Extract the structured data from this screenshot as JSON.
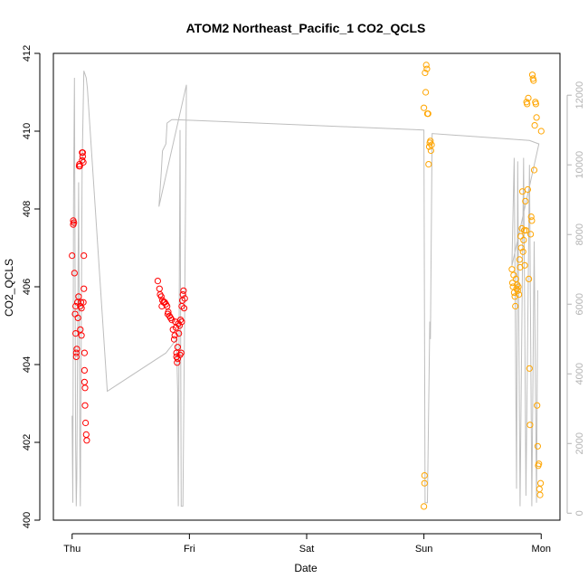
{
  "chart_data": {
    "type": "scatter",
    "title": "ATOM2 Northeast_Pacific_1 CO2_QCLS",
    "xlabel": "Date",
    "ylabel": "CO2_QCLS",
    "x_categories": [
      "Thu",
      "Fri",
      "Sat",
      "Sun",
      "Mon"
    ],
    "xlim": [
      -0.16,
      4.16
    ],
    "ylim": [
      400,
      412
    ],
    "y_ticks": [
      400,
      402,
      404,
      406,
      408,
      410,
      412
    ],
    "y2lim": [
      -200,
      13200
    ],
    "y2_ticks": [
      0,
      2000,
      4000,
      6000,
      8000,
      10000,
      12000
    ],
    "grid": false,
    "legend": "none",
    "colors": {
      "series1": "#ff0000",
      "series2": "#ffa500",
      "altitude": "#bebebe",
      "axis": "#000000",
      "axis2": "#b3b3b3"
    },
    "series": [
      {
        "color": "#ff0000",
        "points": [
          [
            0.0,
            406.8
          ],
          [
            0.01,
            407.6
          ],
          [
            0.01,
            407.7
          ],
          [
            0.015,
            407.65
          ],
          [
            0.02,
            406.35
          ],
          [
            0.025,
            405.3
          ],
          [
            0.03,
            405.5
          ],
          [
            0.03,
            404.8
          ],
          [
            0.035,
            404.2
          ],
          [
            0.035,
            404.3
          ],
          [
            0.04,
            404.4
          ],
          [
            0.045,
            405.6
          ],
          [
            0.05,
            405.2
          ],
          [
            0.055,
            405.75
          ],
          [
            0.06,
            409.1
          ],
          [
            0.062,
            409.15
          ],
          [
            0.065,
            409.1
          ],
          [
            0.07,
            404.9
          ],
          [
            0.07,
            405.5
          ],
          [
            0.075,
            405.6
          ],
          [
            0.08,
            405.45
          ],
          [
            0.08,
            404.75
          ],
          [
            0.085,
            409.25
          ],
          [
            0.085,
            409.45
          ],
          [
            0.09,
            409.45
          ],
          [
            0.09,
            409.35
          ],
          [
            0.095,
            409.2
          ],
          [
            0.095,
            405.6
          ],
          [
            0.1,
            405.95
          ],
          [
            0.1,
            406.8
          ],
          [
            0.105,
            404.3
          ],
          [
            0.105,
            403.85
          ],
          [
            0.105,
            403.55
          ],
          [
            0.11,
            403.4
          ],
          [
            0.11,
            402.95
          ],
          [
            0.115,
            402.5
          ],
          [
            0.12,
            402.2
          ],
          [
            0.125,
            402.05
          ],
          [
            0.73,
            406.15
          ],
          [
            0.745,
            405.95
          ],
          [
            0.75,
            405.8
          ],
          [
            0.76,
            405.75
          ],
          [
            0.765,
            405.5
          ],
          [
            0.77,
            405.65
          ],
          [
            0.78,
            405.6
          ],
          [
            0.79,
            405.6
          ],
          [
            0.8,
            405.55
          ],
          [
            0.81,
            405.5
          ],
          [
            0.815,
            405.3
          ],
          [
            0.82,
            405.35
          ],
          [
            0.83,
            405.25
          ],
          [
            0.84,
            405.2
          ],
          [
            0.85,
            405.15
          ],
          [
            0.86,
            404.9
          ],
          [
            0.87,
            404.65
          ],
          [
            0.875,
            404.75
          ],
          [
            0.88,
            405.1
          ],
          [
            0.885,
            404.95
          ],
          [
            0.89,
            404.2
          ],
          [
            0.89,
            404.3
          ],
          [
            0.895,
            404.05
          ],
          [
            0.9,
            404.15
          ],
          [
            0.9,
            404.45
          ],
          [
            0.905,
            405.05
          ],
          [
            0.91,
            404.8
          ],
          [
            0.915,
            405.0
          ],
          [
            0.92,
            404.25
          ],
          [
            0.925,
            405.15
          ],
          [
            0.93,
            404.3
          ],
          [
            0.935,
            405.1
          ],
          [
            0.935,
            405.5
          ],
          [
            0.94,
            405.65
          ],
          [
            0.945,
            405.8
          ],
          [
            0.95,
            405.9
          ],
          [
            0.955,
            405.45
          ],
          [
            0.96,
            405.7
          ]
        ]
      },
      {
        "color": "#ffa500",
        "points": [
          [
            3.0,
            410.6
          ],
          [
            3.005,
            401.15
          ],
          [
            3.005,
            400.95
          ],
          [
            3.0,
            400.35
          ],
          [
            3.01,
            411.5
          ],
          [
            3.015,
            411.0
          ],
          [
            3.02,
            411.7
          ],
          [
            3.025,
            411.6
          ],
          [
            3.03,
            410.45
          ],
          [
            3.035,
            410.45
          ],
          [
            3.04,
            409.15
          ],
          [
            3.045,
            409.6
          ],
          [
            3.05,
            409.7
          ],
          [
            3.055,
            409.75
          ],
          [
            3.06,
            409.5
          ],
          [
            3.065,
            409.65
          ],
          [
            3.75,
            406.45
          ],
          [
            3.755,
            406.1
          ],
          [
            3.76,
            406.0
          ],
          [
            3.765,
            406.3
          ],
          [
            3.77,
            405.85
          ],
          [
            3.775,
            405.75
          ],
          [
            3.78,
            405.5
          ],
          [
            3.785,
            406.2
          ],
          [
            3.79,
            405.95
          ],
          [
            3.795,
            406.05
          ],
          [
            3.8,
            405.9
          ],
          [
            3.805,
            406.0
          ],
          [
            3.81,
            405.8
          ],
          [
            3.815,
            406.7
          ],
          [
            3.82,
            406.5
          ],
          [
            3.825,
            407.3
          ],
          [
            3.83,
            407.0
          ],
          [
            3.835,
            407.5
          ],
          [
            3.84,
            408.45
          ],
          [
            3.845,
            406.9
          ],
          [
            3.85,
            407.2
          ],
          [
            3.855,
            407.45
          ],
          [
            3.86,
            406.55
          ],
          [
            3.865,
            408.2
          ],
          [
            3.87,
            407.45
          ],
          [
            3.875,
            410.75
          ],
          [
            3.88,
            410.7
          ],
          [
            3.885,
            408.5
          ],
          [
            3.89,
            410.85
          ],
          [
            3.895,
            406.2
          ],
          [
            3.9,
            403.9
          ],
          [
            3.905,
            402.45
          ],
          [
            3.91,
            407.35
          ],
          [
            3.915,
            407.8
          ],
          [
            3.92,
            407.7
          ],
          [
            3.925,
            411.45
          ],
          [
            3.93,
            411.35
          ],
          [
            3.935,
            411.3
          ],
          [
            3.94,
            409.0
          ],
          [
            3.945,
            410.15
          ],
          [
            3.95,
            410.75
          ],
          [
            3.955,
            410.7
          ],
          [
            3.96,
            410.35
          ],
          [
            3.965,
            402.95
          ],
          [
            3.97,
            401.9
          ],
          [
            3.975,
            401.4
          ],
          [
            3.98,
            401.45
          ],
          [
            3.985,
            400.8
          ],
          [
            3.99,
            400.65
          ],
          [
            3.995,
            400.95
          ],
          [
            4.0,
            410.0
          ]
        ]
      }
    ],
    "altitude": {
      "secondary_axis": true,
      "color": "#bebebe",
      "points": [
        [
          0.0,
          2800
        ],
        [
          0.003,
          1500
        ],
        [
          0.006,
          300
        ],
        [
          0.012,
          9000
        ],
        [
          0.02,
          12500
        ],
        [
          0.03,
          2000
        ],
        [
          0.035,
          200
        ],
        [
          0.04,
          1000
        ],
        [
          0.055,
          9500
        ],
        [
          0.065,
          2000
        ],
        [
          0.07,
          200
        ],
        [
          0.085,
          10000
        ],
        [
          0.1,
          12700
        ],
        [
          0.12,
          12500
        ],
        [
          0.13,
          12200
        ],
        [
          0.3,
          3500
        ],
        [
          0.8,
          4600
        ],
        [
          0.87,
          4900
        ],
        [
          0.89,
          5000
        ],
        [
          0.9,
          3500
        ],
        [
          0.905,
          200
        ],
        [
          0.92,
          11000
        ],
        [
          0.93,
          200
        ],
        [
          0.945,
          200
        ],
        [
          0.96,
          6000
        ],
        [
          0.975,
          12300
        ],
        [
          0.74,
          8800
        ],
        [
          0.76,
          9800
        ],
        [
          0.77,
          10400
        ],
        [
          0.8,
          10600
        ],
        [
          0.81,
          11200
        ],
        [
          0.85,
          11300
        ],
        [
          0.875,
          11300
        ],
        [
          3.0,
          11000
        ],
        [
          3.01,
          300
        ],
        [
          3.03,
          300
        ],
        [
          3.05,
          5500
        ],
        [
          3.055,
          5000
        ],
        [
          3.07,
          10900
        ],
        [
          3.9,
          10700
        ],
        [
          3.98,
          10600
        ],
        [
          3.75,
          7100
        ],
        [
          3.77,
          10200
        ],
        [
          3.79,
          700
        ],
        [
          3.8,
          10100
        ],
        [
          3.82,
          200
        ],
        [
          3.84,
          7000
        ],
        [
          3.85,
          10200
        ],
        [
          3.87,
          500
        ],
        [
          3.9,
          10000
        ],
        [
          3.92,
          200
        ],
        [
          3.94,
          7800
        ],
        [
          3.96,
          300
        ],
        [
          3.97,
          6400
        ]
      ]
    }
  }
}
